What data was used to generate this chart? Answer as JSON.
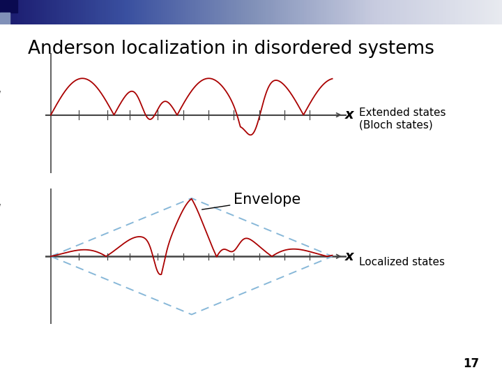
{
  "title": "Anderson localization in disordered systems",
  "title_fontsize": 19,
  "background_color": "#ffffff",
  "header_left_color": "#1a1a6e",
  "header_right_color": "#c8cce0",
  "header_mid_color": "#3a4a8a",
  "psi_label": "ψ",
  "x_label": "x",
  "extended_label": "Extended states\n(Bloch states)",
  "localized_label": "Localized states",
  "envelope_label": "Envelope",
  "page_number": "17",
  "wave_color": "#aa0000",
  "envelope_color": "#7ab0d4",
  "axis_color": "#444444",
  "tick_color": "#444444"
}
